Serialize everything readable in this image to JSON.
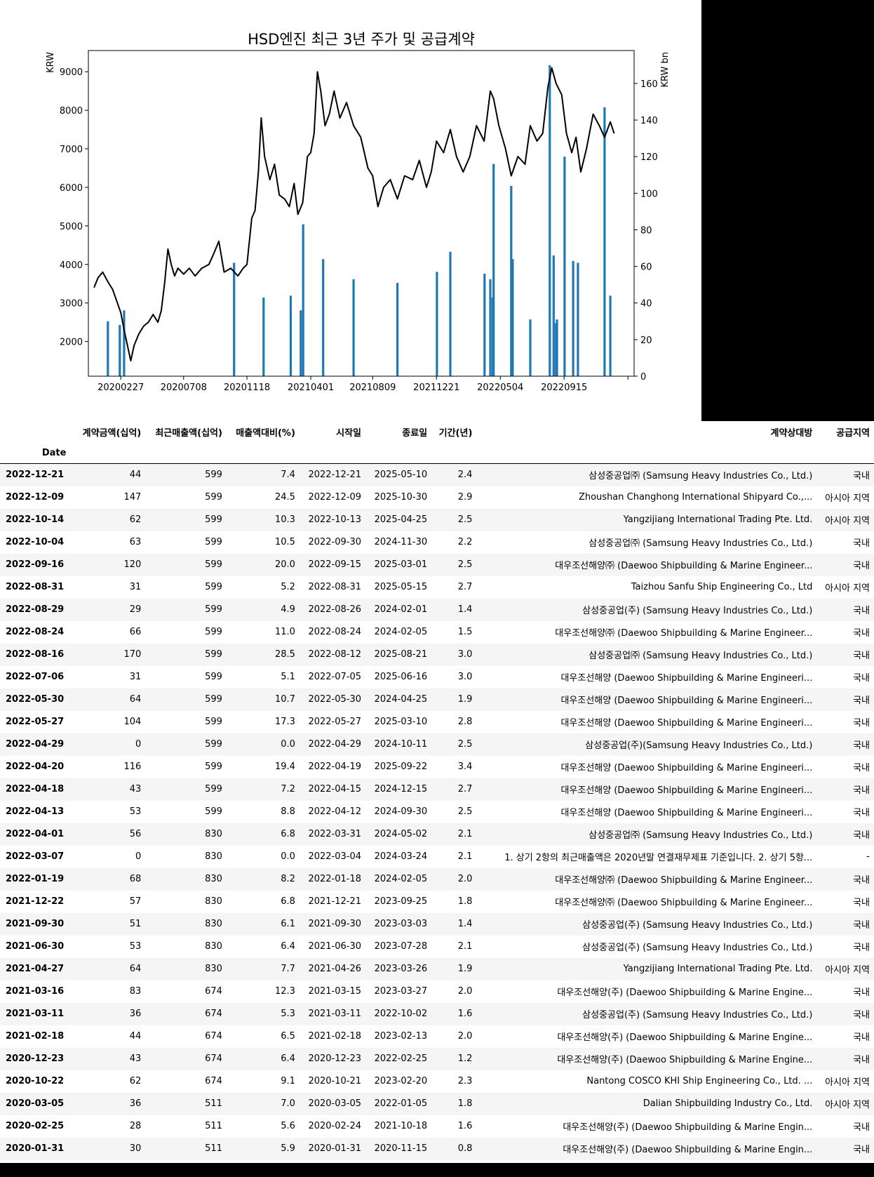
{
  "chart_data": {
    "type": "line+bar",
    "title": "HSD엔진 최근 3년 주가 및 공급계약",
    "ylabel_left": "KRW",
    "ylabel_right": "KRW bn",
    "ylim_left": [
      1100,
      9550
    ],
    "ylim_right": [
      0,
      178
    ],
    "yticks_left": [
      2000,
      3000,
      4000,
      5000,
      6000,
      7000,
      8000,
      9000
    ],
    "yticks_right": [
      0,
      20,
      40,
      60,
      80,
      100,
      120,
      140,
      160
    ],
    "xlim": [
      "2019-12-21",
      "2023-02-09"
    ],
    "xtick_labels": [
      "20200227",
      "20200708",
      "20201118",
      "20210401",
      "20210809",
      "20211221",
      "20220504",
      "20220915"
    ],
    "xtick_dates": [
      "2020-02-27",
      "2020-07-08",
      "2020-11-18",
      "2021-04-01",
      "2021-08-09",
      "2021-12-21",
      "2022-05-04",
      "2022-09-15",
      "2023-01-27"
    ],
    "line_color": "#000000",
    "bar_color": "#1f77b4",
    "price_series": {
      "name": "",
      "points": [
        [
          "2020-01-02",
          3400
        ],
        [
          "2020-01-10",
          3650
        ],
        [
          "2020-01-20",
          3800
        ],
        [
          "2020-01-31",
          3550
        ],
        [
          "2020-02-10",
          3350
        ],
        [
          "2020-02-20",
          3000
        ],
        [
          "2020-02-27",
          2750
        ],
        [
          "2020-03-05",
          2300
        ],
        [
          "2020-03-12",
          1900
        ],
        [
          "2020-03-19",
          1500
        ],
        [
          "2020-03-26",
          1900
        ],
        [
          "2020-04-05",
          2200
        ],
        [
          "2020-04-15",
          2400
        ],
        [
          "2020-04-25",
          2500
        ],
        [
          "2020-05-05",
          2700
        ],
        [
          "2020-05-15",
          2500
        ],
        [
          "2020-05-22",
          2800
        ],
        [
          "2020-05-29",
          3500
        ],
        [
          "2020-06-05",
          4400
        ],
        [
          "2020-06-12",
          4000
        ],
        [
          "2020-06-19",
          3700
        ],
        [
          "2020-06-26",
          3900
        ],
        [
          "2020-07-08",
          3750
        ],
        [
          "2020-07-20",
          3900
        ],
        [
          "2020-08-01",
          3700
        ],
        [
          "2020-08-15",
          3900
        ],
        [
          "2020-08-30",
          4000
        ],
        [
          "2020-09-10",
          4300
        ],
        [
          "2020-09-20",
          4600
        ],
        [
          "2020-10-01",
          3800
        ],
        [
          "2020-10-15",
          3900
        ],
        [
          "2020-10-30",
          3700
        ],
        [
          "2020-11-10",
          3900
        ],
        [
          "2020-11-18",
          4000
        ],
        [
          "2020-11-28",
          5200
        ],
        [
          "2020-12-05",
          5400
        ],
        [
          "2020-12-12",
          6400
        ],
        [
          "2020-12-18",
          7800
        ],
        [
          "2020-12-25",
          6800
        ],
        [
          "2021-01-05",
          6200
        ],
        [
          "2021-01-15",
          6600
        ],
        [
          "2021-01-25",
          5800
        ],
        [
          "2021-02-05",
          5700
        ],
        [
          "2021-02-15",
          5500
        ],
        [
          "2021-02-25",
          6100
        ],
        [
          "2021-03-05",
          5300
        ],
        [
          "2021-03-15",
          5600
        ],
        [
          "2021-03-25",
          6800
        ],
        [
          "2021-04-01",
          6900
        ],
        [
          "2021-04-08",
          7400
        ],
        [
          "2021-04-15",
          9000
        ],
        [
          "2021-04-22",
          8500
        ],
        [
          "2021-05-01",
          7600
        ],
        [
          "2021-05-10",
          7900
        ],
        [
          "2021-05-20",
          8500
        ],
        [
          "2021-06-01",
          7800
        ],
        [
          "2021-06-15",
          8200
        ],
        [
          "2021-06-30",
          7600
        ],
        [
          "2021-07-15",
          7300
        ],
        [
          "2021-07-30",
          6500
        ],
        [
          "2021-08-09",
          6300
        ],
        [
          "2021-08-20",
          5500
        ],
        [
          "2021-09-01",
          6000
        ],
        [
          "2021-09-15",
          6200
        ],
        [
          "2021-09-30",
          5700
        ],
        [
          "2021-10-15",
          6300
        ],
        [
          "2021-11-01",
          6200
        ],
        [
          "2021-11-15",
          6700
        ],
        [
          "2021-11-30",
          6000
        ],
        [
          "2021-12-10",
          6400
        ],
        [
          "2021-12-21",
          7200
        ],
        [
          "2022-01-05",
          6900
        ],
        [
          "2022-01-19",
          7500
        ],
        [
          "2022-02-01",
          6800
        ],
        [
          "2022-02-15",
          6400
        ],
        [
          "2022-03-01",
          6800
        ],
        [
          "2022-03-15",
          7600
        ],
        [
          "2022-03-31",
          7200
        ],
        [
          "2022-04-13",
          8500
        ],
        [
          "2022-04-20",
          8300
        ],
        [
          "2022-05-01",
          7600
        ],
        [
          "2022-05-15",
          7000
        ],
        [
          "2022-05-27",
          6300
        ],
        [
          "2022-06-10",
          6800
        ],
        [
          "2022-06-25",
          6600
        ],
        [
          "2022-07-06",
          7600
        ],
        [
          "2022-07-20",
          7200
        ],
        [
          "2022-08-01",
          7400
        ],
        [
          "2022-08-12",
          8600
        ],
        [
          "2022-08-20",
          9100
        ],
        [
          "2022-08-29",
          8700
        ],
        [
          "2022-09-10",
          8400
        ],
        [
          "2022-09-20",
          7400
        ],
        [
          "2022-10-01",
          6900
        ],
        [
          "2022-10-10",
          7300
        ],
        [
          "2022-10-20",
          6400
        ],
        [
          "2022-11-01",
          7000
        ],
        [
          "2022-11-15",
          7900
        ],
        [
          "2022-11-28",
          7600
        ],
        [
          "2022-12-09",
          7300
        ],
        [
          "2022-12-21",
          7700
        ],
        [
          "2022-12-29",
          7400
        ]
      ]
    },
    "contract_bars": {
      "name": "",
      "dates": [
        "2022-12-21",
        "2022-12-09",
        "2022-10-14",
        "2022-10-04",
        "2022-09-16",
        "2022-08-31",
        "2022-08-29",
        "2022-08-24",
        "2022-08-16",
        "2022-07-06",
        "2022-05-30",
        "2022-05-27",
        "2022-04-29",
        "2022-04-20",
        "2022-04-18",
        "2022-04-13",
        "2022-04-01",
        "2022-03-07",
        "2022-01-19",
        "2021-12-22",
        "2021-09-30",
        "2021-06-30",
        "2021-04-27",
        "2021-03-16",
        "2021-03-11",
        "2021-02-18",
        "2020-12-23",
        "2020-10-22",
        "2020-03-05",
        "2020-02-25",
        "2020-01-31"
      ],
      "values": [
        44,
        147,
        62,
        63,
        120,
        31,
        29,
        66,
        170,
        31,
        64,
        104,
        0,
        116,
        43,
        53,
        56,
        0,
        68,
        57,
        51,
        53,
        64,
        83,
        36,
        44,
        43,
        62,
        36,
        28,
        30
      ]
    }
  },
  "table": {
    "index_name": "Date",
    "columns": [
      "계약금액(십억)",
      "최근매출액(십억)",
      "매출액대비(%)",
      "시작일",
      "종료일",
      "기간(년)",
      "계약상대방",
      "공급지역"
    ],
    "rows": [
      [
        "2022-12-21",
        "44",
        "599",
        "7.4",
        "2022-12-21",
        "2025-05-10",
        "2.4",
        "삼성중공업㈜ (Samsung Heavy Industries Co., Ltd.)",
        "국내"
      ],
      [
        "2022-12-09",
        "147",
        "599",
        "24.5",
        "2022-12-09",
        "2025-10-30",
        "2.9",
        "Zhoushan Changhong International Shipyard Co.,...",
        "아시아 지역"
      ],
      [
        "2022-10-14",
        "62",
        "599",
        "10.3",
        "2022-10-13",
        "2025-04-25",
        "2.5",
        "Yangzijiang International Trading Pte. Ltd.",
        "아시아 지역"
      ],
      [
        "2022-10-04",
        "63",
        "599",
        "10.5",
        "2022-09-30",
        "2024-11-30",
        "2.2",
        "삼성중공업㈜ (Samsung Heavy Industries Co., Ltd.)",
        "국내"
      ],
      [
        "2022-09-16",
        "120",
        "599",
        "20.0",
        "2022-09-15",
        "2025-03-01",
        "2.5",
        "대우조선해양㈜ (Daewoo Shipbuilding & Marine Engineer...",
        "국내"
      ],
      [
        "2022-08-31",
        "31",
        "599",
        "5.2",
        "2022-08-31",
        "2025-05-15",
        "2.7",
        "Taizhou Sanfu Ship Engineering Co., Ltd",
        "아시아 지역"
      ],
      [
        "2022-08-29",
        "29",
        "599",
        "4.9",
        "2022-08-26",
        "2024-02-01",
        "1.4",
        "삼성중공업(주) (Samsung Heavy Industries Co., Ltd.)",
        "국내"
      ],
      [
        "2022-08-24",
        "66",
        "599",
        "11.0",
        "2022-08-24",
        "2024-02-05",
        "1.5",
        "대우조선해양㈜ (Daewoo Shipbuilding & Marine Engineer...",
        "국내"
      ],
      [
        "2022-08-16",
        "170",
        "599",
        "28.5",
        "2022-08-12",
        "2025-08-21",
        "3.0",
        "삼성중공업㈜ (Samsung Heavy Industries Co., Ltd.)",
        "국내"
      ],
      [
        "2022-07-06",
        "31",
        "599",
        "5.1",
        "2022-07-05",
        "2025-06-16",
        "3.0",
        "대우조선해양 (Daewoo Shipbuilding & Marine Engineeri...",
        "국내"
      ],
      [
        "2022-05-30",
        "64",
        "599",
        "10.7",
        "2022-05-30",
        "2024-04-25",
        "1.9",
        "대우조선해양 (Daewoo Shipbuilding & Marine Engineeri...",
        "국내"
      ],
      [
        "2022-05-27",
        "104",
        "599",
        "17.3",
        "2022-05-27",
        "2025-03-10",
        "2.8",
        "대우조선해양 (Daewoo Shipbuilding & Marine Engineeri...",
        "국내"
      ],
      [
        "2022-04-29",
        "0",
        "599",
        "0.0",
        "2022-04-29",
        "2024-10-11",
        "2.5",
        "삼성중공업(주)(Samsung Heavy Industries Co., Ltd.)",
        "국내"
      ],
      [
        "2022-04-20",
        "116",
        "599",
        "19.4",
        "2022-04-19",
        "2025-09-22",
        "3.4",
        "대우조선해양 (Daewoo Shipbuilding & Marine Engineeri...",
        "국내"
      ],
      [
        "2022-04-18",
        "43",
        "599",
        "7.2",
        "2022-04-15",
        "2024-12-15",
        "2.7",
        "대우조선해양 (Daewoo Shipbuilding & Marine Engineeri...",
        "국내"
      ],
      [
        "2022-04-13",
        "53",
        "599",
        "8.8",
        "2022-04-12",
        "2024-09-30",
        "2.5",
        "대우조선해양 (Daewoo Shipbuilding & Marine Engineeri...",
        "국내"
      ],
      [
        "2022-04-01",
        "56",
        "830",
        "6.8",
        "2022-03-31",
        "2024-05-02",
        "2.1",
        "삼성중공업㈜ (Samsung Heavy Industries Co., Ltd.)",
        "국내"
      ],
      [
        "2022-03-07",
        "0",
        "830",
        "0.0",
        "2022-03-04",
        "2024-03-24",
        "2.1",
        "1. 상기 2항의 최근매출액은 2020년말 연결재무제표 기준입니다. 2. 상기 5항...",
        "-"
      ],
      [
        "2022-01-19",
        "68",
        "830",
        "8.2",
        "2022-01-18",
        "2024-02-05",
        "2.0",
        "대우조선해양㈜ (Daewoo Shipbuilding & Marine Engineer...",
        "국내"
      ],
      [
        "2021-12-22",
        "57",
        "830",
        "6.8",
        "2021-12-21",
        "2023-09-25",
        "1.8",
        "대우조선해양㈜ (Daewoo Shipbuilding & Marine Engineer...",
        "국내"
      ],
      [
        "2021-09-30",
        "51",
        "830",
        "6.1",
        "2021-09-30",
        "2023-03-03",
        "1.4",
        "삼성중공업(주) (Samsung Heavy Industries Co., Ltd.)",
        "국내"
      ],
      [
        "2021-06-30",
        "53",
        "830",
        "6.4",
        "2021-06-30",
        "2023-07-28",
        "2.1",
        "삼성중공업(주) (Samsung Heavy Industries Co., Ltd.)",
        "국내"
      ],
      [
        "2021-04-27",
        "64",
        "830",
        "7.7",
        "2021-04-26",
        "2023-03-26",
        "1.9",
        "Yangzijiang International Trading Pte. Ltd.",
        "아시아 지역"
      ],
      [
        "2021-03-16",
        "83",
        "674",
        "12.3",
        "2021-03-15",
        "2023-03-27",
        "2.0",
        "대우조선해양(주) (Daewoo Shipbuilding & Marine Engine...",
        "국내"
      ],
      [
        "2021-03-11",
        "36",
        "674",
        "5.3",
        "2021-03-11",
        "2022-10-02",
        "1.6",
        "삼성중공업(주) (Samsung Heavy Industries Co., Ltd.)",
        "국내"
      ],
      [
        "2021-02-18",
        "44",
        "674",
        "6.5",
        "2021-02-18",
        "2023-02-13",
        "2.0",
        "대우조선해양(주) (Daewoo Shipbuilding & Marine Engine...",
        "국내"
      ],
      [
        "2020-12-23",
        "43",
        "674",
        "6.4",
        "2020-12-23",
        "2022-02-25",
        "1.2",
        "대우조선해양(주) (Daewoo Shipbuilding & Marine Engine...",
        "국내"
      ],
      [
        "2020-10-22",
        "62",
        "674",
        "9.1",
        "2020-10-21",
        "2023-02-20",
        "2.3",
        "Nantong COSCO KHI Ship Engineering Co., Ltd. ...",
        "아시아 지역"
      ],
      [
        "2020-03-05",
        "36",
        "511",
        "7.0",
        "2020-03-05",
        "2022-01-05",
        "1.8",
        "Dalian Shipbuilding Industry Co., Ltd.",
        "아시아 지역"
      ],
      [
        "2020-02-25",
        "28",
        "511",
        "5.6",
        "2020-02-24",
        "2021-10-18",
        "1.6",
        "대우조선해양(주) (Daewoo Shipbuilding & Marine Engin...",
        "국내"
      ],
      [
        "2020-01-31",
        "30",
        "511",
        "5.9",
        "2020-01-31",
        "2020-11-15",
        "0.8",
        "대우조선해양(주) (Daewoo Shipbuilding & Marine Engin...",
        "국내"
      ]
    ]
  }
}
